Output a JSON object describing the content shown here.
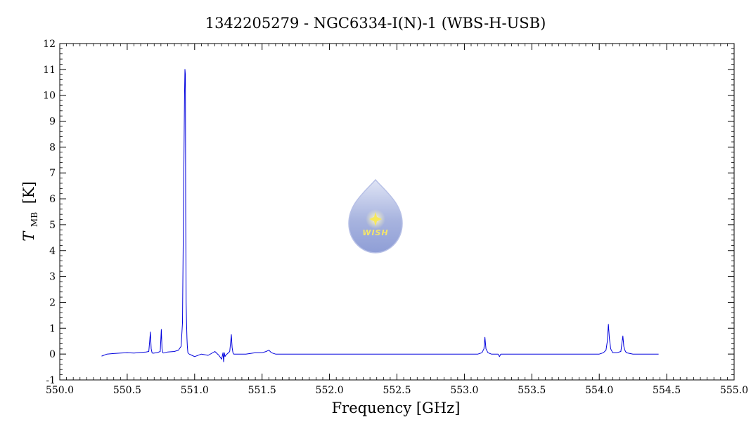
{
  "chart_data": {
    "type": "line",
    "title": "1342205279 - NGC6334-I(N)-1 (WBS-H-USB)",
    "xlabel": "Frequency [GHz]",
    "ylabel_main": "T",
    "ylabel_sub": "MB",
    "ylabel_unit": "[K]",
    "xlim": [
      550.0,
      555.0
    ],
    "ylim": [
      -1,
      12
    ],
    "xticks": [
      "550.0",
      "550.5",
      "551.0",
      "551.5",
      "552.0",
      "552.5",
      "553.0",
      "553.5",
      "554.0",
      "554.5",
      "555.0"
    ],
    "yticks": [
      "-1",
      "0",
      "1",
      "2",
      "3",
      "4",
      "5",
      "6",
      "7",
      "8",
      "9",
      "10",
      "11",
      "12"
    ],
    "series": [
      {
        "color": "#0000dd",
        "x": [
          550.31,
          550.35,
          550.4,
          550.45,
          550.5,
          550.55,
          550.6,
          550.64,
          550.66,
          550.672,
          550.678,
          550.684,
          550.69,
          550.72,
          550.745,
          550.753,
          550.758,
          550.764,
          550.77,
          550.8,
          550.85,
          550.88,
          550.9,
          550.91,
          550.92,
          550.925,
          550.928,
          550.931,
          550.934,
          550.937,
          550.94,
          550.943,
          550.946,
          550.95,
          550.96,
          550.98,
          551.0,
          551.05,
          551.1,
          551.15,
          551.18,
          551.2,
          551.21,
          551.215,
          551.22,
          551.225,
          551.23,
          551.26,
          551.272,
          551.278,
          551.284,
          551.29,
          551.32,
          551.38,
          551.45,
          551.5,
          551.53,
          551.55,
          551.57,
          551.6,
          551.7,
          551.8,
          551.9,
          552.0,
          552.1,
          552.2,
          552.3,
          552.4,
          552.5,
          552.6,
          552.7,
          552.8,
          552.9,
          553.0,
          553.1,
          553.13,
          553.145,
          553.152,
          553.16,
          553.175,
          553.2,
          553.25,
          553.26,
          553.27,
          553.3,
          553.4,
          553.5,
          553.6,
          553.7,
          553.8,
          553.9,
          554.0,
          554.03,
          554.05,
          554.06,
          554.068,
          554.075,
          554.085,
          554.1,
          554.13,
          554.16,
          554.175,
          554.182,
          554.19,
          554.2,
          554.25,
          554.3,
          554.35,
          554.4,
          554.44
        ],
        "values": [
          -0.08,
          0.0,
          0.02,
          0.04,
          0.05,
          0.04,
          0.06,
          0.08,
          0.1,
          0.85,
          0.2,
          0.05,
          0.03,
          0.05,
          0.1,
          0.95,
          0.2,
          0.05,
          0.04,
          0.08,
          0.1,
          0.15,
          0.3,
          1.2,
          7.2,
          10.0,
          11.0,
          10.8,
          5.4,
          2.0,
          1.2,
          0.6,
          0.3,
          0.05,
          0.0,
          -0.05,
          -0.1,
          0.0,
          -0.05,
          0.1,
          -0.05,
          -0.2,
          0.05,
          -0.3,
          0.05,
          -0.1,
          -0.05,
          0.1,
          0.75,
          0.25,
          0.05,
          0.0,
          0.0,
          0.0,
          0.05,
          0.05,
          0.1,
          0.15,
          0.05,
          0.0,
          0.0,
          0.0,
          0.0,
          0.0,
          0.0,
          0.0,
          0.0,
          0.0,
          0.0,
          0.0,
          0.0,
          0.0,
          0.0,
          0.0,
          0.0,
          0.05,
          0.2,
          0.65,
          0.2,
          0.05,
          0.0,
          0.0,
          -0.1,
          0.0,
          0.0,
          0.0,
          0.0,
          0.0,
          0.0,
          0.0,
          0.0,
          0.0,
          0.05,
          0.15,
          0.5,
          1.15,
          0.6,
          0.2,
          0.05,
          0.05,
          0.1,
          0.7,
          0.3,
          0.15,
          0.05,
          0.0,
          0.0,
          0.0,
          0.0,
          0.0
        ]
      }
    ],
    "grid": false,
    "legend": "none"
  },
  "logo": {
    "text": "WISH",
    "icon": "water-drop-star-icon"
  }
}
